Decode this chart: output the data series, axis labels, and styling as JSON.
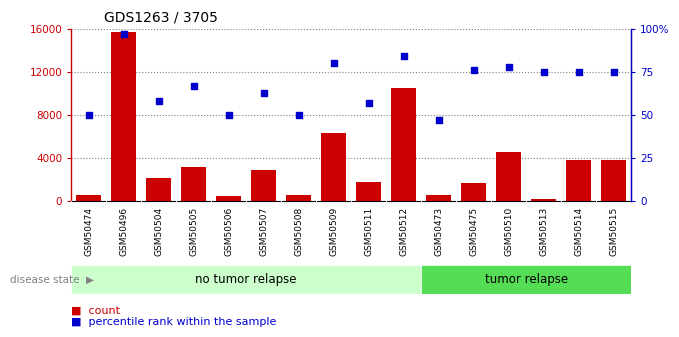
{
  "title": "GDS1263 / 3705",
  "samples": [
    "GSM50474",
    "GSM50496",
    "GSM50504",
    "GSM50505",
    "GSM50506",
    "GSM50507",
    "GSM50508",
    "GSM50509",
    "GSM50511",
    "GSM50512",
    "GSM50473",
    "GSM50475",
    "GSM50510",
    "GSM50513",
    "GSM50514",
    "GSM50515"
  ],
  "counts": [
    600,
    15700,
    2200,
    3200,
    500,
    2900,
    550,
    6300,
    1800,
    10500,
    550,
    1700,
    4600,
    200,
    3800,
    3800
  ],
  "percentiles": [
    50,
    97,
    58,
    67,
    50,
    63,
    50,
    80,
    57,
    84,
    47,
    76,
    78,
    75,
    75,
    75
  ],
  "no_tumor_count": 10,
  "tumor_count": 6,
  "no_tumor_label": "no tumor relapse",
  "tumor_label": "tumor relapse",
  "disease_state_label": "disease state",
  "legend_count_label": "count",
  "legend_percentile_label": "percentile rank within the sample",
  "bar_color": "#cc0000",
  "dot_color": "#0000cc",
  "no_tumor_bg": "#ccffcc",
  "tumor_bg": "#55dd55",
  "tick_bg": "#d0d0d0",
  "plot_bg": "#ffffff",
  "ylim_left": [
    0,
    16000
  ],
  "ylim_right": [
    0,
    100
  ],
  "yticks_left": [
    0,
    4000,
    8000,
    12000,
    16000
  ],
  "yticks_right": [
    0,
    25,
    50,
    75,
    100
  ],
  "ytick_labels_left": [
    "0",
    "4000",
    "8000",
    "12000",
    "16000"
  ],
  "ytick_labels_right": [
    "0",
    "25",
    "50",
    "75",
    "100%"
  ]
}
